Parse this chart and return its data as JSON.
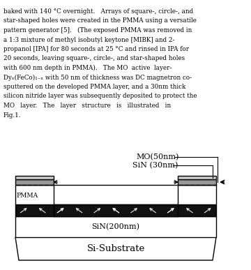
{
  "substrate_label": "Si-Substrate",
  "sin200_label": "SiN(200nm)",
  "pmma_label": "PMMA",
  "mo_label": "MO(50nm)",
  "sin30_label": "SiN (30nm)",
  "paragraph": [
    "baked with 140 °C overnight.   Arrays of square-, circle-, and",
    "star-shaped holes were created in the PMMA using a versatile",
    "pattern generator [5].   (The exposed PMMA was removed in",
    "a 1:3 mixture of methyl isobutyl keytone [MIBK] and 2-",
    "propanol [IPA] for 80 seconds at 25 °C and rinsed in IPA for",
    "20 seconds, leaving square-, circle-, and star-shaped holes",
    "with 600 nm depth in PMMA).   The MO  active  layer-",
    "Dyₓ(FeCo)₁₋ₓ with 50 nm of thickness was DC magnetron co-",
    "sputtered on the developed PMMA layer, and a 30nm thick",
    "silicon nitride layer was subsequently deposited to protect the",
    "MO   layer.   The   layer   structure   is   illustrated   in",
    "Fig.1."
  ],
  "fig_width": 3.6,
  "fig_height": 3.87
}
